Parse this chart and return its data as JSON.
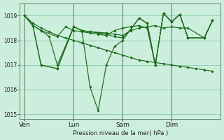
{
  "background_color": "#cceedd",
  "plot_bg_color": "#cceedd",
  "grid_color": "#88ccaa",
  "line_color": "#1a6b1a",
  "marker_color": "#1a6b1a",
  "xlabel_text": "Pression niveau de la mer( hPa )",
  "ylim": [
    1014.8,
    1019.5
  ],
  "yticks": [
    1015,
    1016,
    1017,
    1018,
    1019
  ],
  "xtick_labels": [
    "Ven",
    "Lun",
    "Sam",
    "Dim"
  ],
  "xtick_positions": [
    0,
    30,
    60,
    90
  ],
  "vline_positions": [
    0,
    30,
    60,
    90
  ],
  "xlim": [
    -3,
    120
  ],
  "series": {
    "line1": {
      "x": [
        0,
        5,
        10,
        15,
        20,
        25,
        30,
        35,
        40,
        45,
        50,
        55,
        60,
        65,
        70,
        75,
        80,
        85,
        90,
        95,
        100,
        105,
        110,
        115
      ],
      "y": [
        1019.0,
        1018.7,
        1018.5,
        1018.35,
        1018.2,
        1018.1,
        1018.0,
        1017.9,
        1017.8,
        1017.7,
        1017.6,
        1017.5,
        1017.4,
        1017.3,
        1017.2,
        1017.15,
        1017.1,
        1017.05,
        1017.0,
        1016.95,
        1016.9,
        1016.85,
        1016.8,
        1016.75
      ]
    },
    "line2": {
      "x": [
        0,
        5,
        10,
        15,
        20,
        30,
        35,
        40,
        50,
        55,
        60,
        65,
        70,
        75,
        80,
        85,
        90,
        95,
        100,
        110,
        115
      ],
      "y": [
        1019.0,
        1018.6,
        1018.4,
        1018.15,
        1017.0,
        1018.55,
        1018.4,
        1018.35,
        1018.3,
        1018.25,
        1018.2,
        1018.4,
        1018.5,
        1018.55,
        1018.6,
        1018.5,
        1018.55,
        1018.5,
        1018.5,
        1018.1,
        1018.8
      ]
    },
    "line3": {
      "x": [
        0,
        5,
        10,
        20,
        25,
        30,
        35,
        40,
        45,
        50,
        55,
        60,
        65,
        70,
        75,
        80,
        85,
        90,
        95,
        100,
        110,
        115
      ],
      "y": [
        1019.0,
        1018.6,
        1018.4,
        1018.15,
        1018.55,
        1018.4,
        1018.35,
        1018.3,
        1018.25,
        1018.2,
        1018.4,
        1018.5,
        1018.55,
        1018.6,
        1018.5,
        1017.0,
        1019.1,
        1018.75,
        1019.05,
        1018.1,
        1018.1,
        1018.8
      ]
    },
    "line4": {
      "x": [
        0,
        5,
        10,
        20,
        30,
        35,
        40,
        45,
        50,
        55,
        60,
        65,
        70,
        75,
        80,
        85,
        90,
        95,
        100,
        110,
        115
      ],
      "y": [
        1019.0,
        1018.6,
        1017.0,
        1016.85,
        1018.55,
        1018.4,
        1016.1,
        1015.15,
        1017.0,
        1017.75,
        1018.0,
        1018.45,
        1018.9,
        1018.7,
        1017.0,
        1019.1,
        1018.75,
        1019.05,
        1018.1,
        1018.1,
        1018.8
      ]
    },
    "line5": {
      "x": [
        0,
        5,
        10,
        20,
        30,
        35,
        45,
        50,
        55,
        60,
        65,
        70,
        75,
        80,
        85,
        90,
        95,
        100,
        110,
        115
      ],
      "y": [
        1019.0,
        1018.6,
        1017.0,
        1016.85,
        1018.55,
        1018.4,
        1018.3,
        1018.25,
        1018.15,
        1018.1,
        1018.45,
        1018.9,
        1018.7,
        1017.0,
        1019.1,
        1018.75,
        1019.05,
        1018.1,
        1018.1,
        1018.8
      ]
    }
  }
}
